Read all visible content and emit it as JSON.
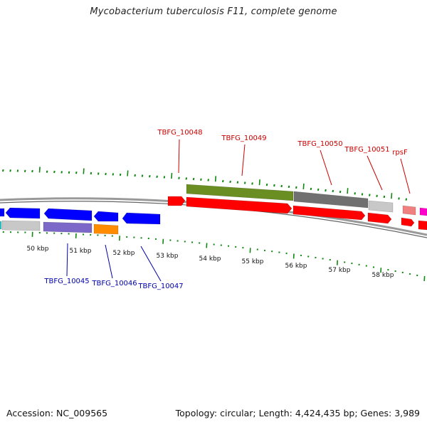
{
  "title": "Mycobacterium tuberculosis F11, complete genome",
  "accession": "Accession: NC_009565",
  "summary": "Topology: circular; Length: 4,424,435 bp; Genes: 3,989",
  "colors": {
    "forward_label": "#cc0000",
    "reverse_label": "#0000aa",
    "tick": "#118811",
    "backbone": "#888888",
    "red": "#ff0000",
    "blue": "#0000ff",
    "olive": "#6b8e23",
    "dark_gray": "#707070",
    "light_gray": "#c8c8c8",
    "purple": "#7b68c8",
    "orange": "#ff8c00",
    "salmon": "#f08080",
    "magenta": "#ff00cc"
  },
  "scale": {
    "unit": "kbp",
    "labels": [
      "50 kbp",
      "51 kbp",
      "52 kbp",
      "53 kbp",
      "54 kbp",
      "55 kbp",
      "56 kbp",
      "57 kbp",
      "58 kbp"
    ]
  },
  "genes_forward": [
    {
      "name": "TBFG_10048",
      "strand": "+"
    },
    {
      "name": "TBFG_10049",
      "strand": "+"
    },
    {
      "name": "TBFG_10050",
      "strand": "+"
    },
    {
      "name": "TBFG_10051",
      "strand": "+"
    },
    {
      "name": "rpsF",
      "strand": "+"
    }
  ],
  "genes_reverse": [
    {
      "name": "TBFG_10045",
      "strand": "-"
    },
    {
      "name": "TBFG_10046",
      "strand": "-"
    },
    {
      "name": "TBFG_10047",
      "strand": "-"
    }
  ]
}
